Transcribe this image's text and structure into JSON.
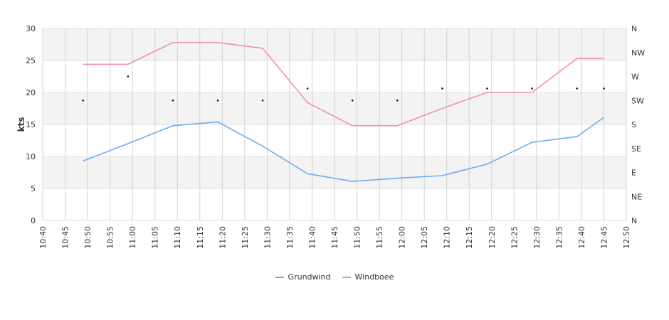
{
  "chart_data": {
    "type": "line",
    "ylabel": "kts",
    "ylim": [
      0,
      30
    ],
    "y_ticks": [
      "0",
      "5",
      "10",
      "15",
      "20",
      "25",
      "30"
    ],
    "y2_ticks": [
      "N",
      "NE",
      "E",
      "SE",
      "S",
      "SW",
      "W",
      "NW",
      "N"
    ],
    "x_ticks": [
      "10:40",
      "10:45",
      "10:50",
      "10:55",
      "11:00",
      "11:05",
      "11:10",
      "11:15",
      "11:20",
      "11:25",
      "11:30",
      "11:35",
      "11:40",
      "11:45",
      "11:50",
      "11:55",
      "12:00",
      "12:05",
      "12:10",
      "12:15",
      "12:20",
      "12:25",
      "12:30",
      "12:35",
      "12:40",
      "12:45",
      "12:50"
    ],
    "legend_placement": "bottom",
    "grid": true,
    "series": [
      {
        "name": "Grundwind",
        "color": "#6aaef2",
        "points": [
          [
            "10:49",
            9.3
          ],
          [
            "10:59",
            12.0
          ],
          [
            "11:09",
            14.8
          ],
          [
            "11:19",
            15.4
          ],
          [
            "11:29",
            11.6
          ],
          [
            "11:39",
            7.3
          ],
          [
            "11:49",
            6.1
          ],
          [
            "11:59",
            6.6
          ],
          [
            "12:09",
            7.0
          ],
          [
            "12:19",
            8.8
          ],
          [
            "12:29",
            12.2
          ],
          [
            "12:39",
            13.1
          ],
          [
            "12:45",
            16.1
          ]
        ]
      },
      {
        "name": "Windboee",
        "color": "#f08fbd",
        "points": [
          [
            "10:49",
            24.4
          ],
          [
            "10:59",
            24.4
          ],
          [
            "11:09",
            27.8
          ],
          [
            "11:19",
            27.8
          ],
          [
            "11:29",
            26.9
          ],
          [
            "11:39",
            18.4
          ],
          [
            "11:49",
            14.8
          ],
          [
            "11:59",
            14.8
          ],
          [
            "12:09",
            17.5
          ],
          [
            "12:19",
            20.0
          ],
          [
            "12:29",
            20.0
          ],
          [
            "12:39",
            25.3
          ],
          [
            "12:45",
            25.3
          ]
        ]
      }
    ],
    "direction_markers": {
      "points": [
        [
          "10:49",
          "SW"
        ],
        [
          "10:59",
          "W"
        ],
        [
          "11:09",
          "SW"
        ],
        [
          "11:19",
          "SW"
        ],
        [
          "11:29",
          "SW"
        ],
        [
          "11:39",
          "WSW"
        ],
        [
          "11:49",
          "SW"
        ],
        [
          "11:59",
          "SW"
        ],
        [
          "12:09",
          "WSW"
        ],
        [
          "12:19",
          "WSW"
        ],
        [
          "12:29",
          "WSW"
        ],
        [
          "12:39",
          "WSW"
        ],
        [
          "12:45",
          "WSW"
        ]
      ]
    }
  }
}
